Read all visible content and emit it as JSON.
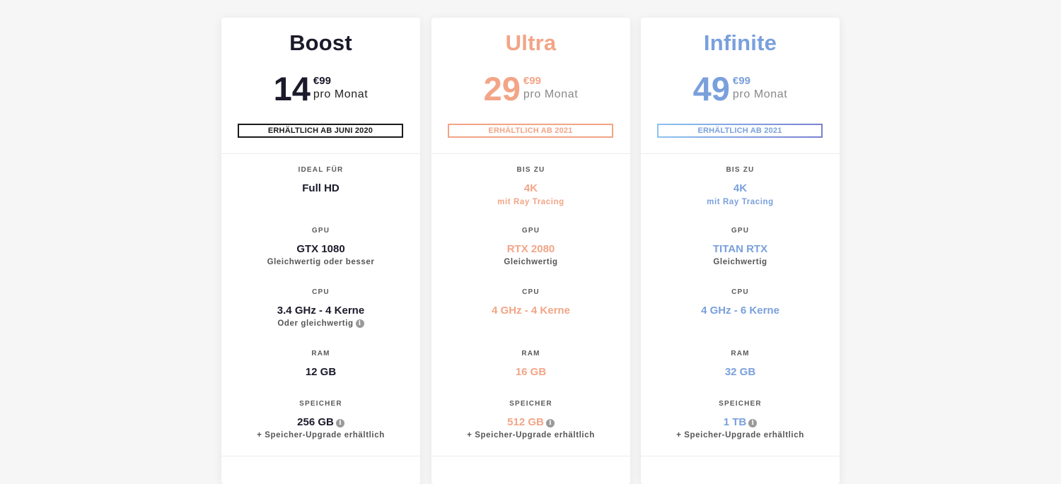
{
  "plans": [
    {
      "name": "Boost",
      "price_int": "14",
      "price_cents": "€99",
      "period": "pro Monat",
      "availability": "ERHÄLTLICH AB JUNI 2020",
      "accent": "#1a1a2a",
      "border": "#1a1a1a",
      "specs": [
        {
          "label": "IDEAL FÜR",
          "value": "Full HD",
          "sub": "",
          "info": false
        },
        {
          "label": "GPU",
          "value": "GTX 1080",
          "sub": "Gleichwertig oder besser",
          "info": false
        },
        {
          "label": "CPU",
          "value": "3.4 GHz - 4 Kerne",
          "sub": "Oder gleichwertig",
          "info": true
        },
        {
          "label": "RAM",
          "value": "12 GB",
          "sub": "",
          "info": false
        },
        {
          "label": "SPEICHER",
          "value": "256 GB",
          "sub": "+ Speicher-Upgrade erhältlich",
          "info": true
        }
      ]
    },
    {
      "name": "Ultra",
      "price_int": "29",
      "price_cents": "€99",
      "period": "pro Monat",
      "availability": "ERHÄLTLICH AB 2021",
      "accent": "#f2a587",
      "border": "#f2a587",
      "specs": [
        {
          "label": "BIS ZU",
          "value": "4K",
          "sub": "mit Ray Tracing",
          "info": false
        },
        {
          "label": "GPU",
          "value": "RTX 2080",
          "sub": "Gleichwertig",
          "info": false
        },
        {
          "label": "CPU",
          "value": "4 GHz - 4 Kerne",
          "sub": "",
          "info": false
        },
        {
          "label": "RAM",
          "value": "16 GB",
          "sub": "",
          "info": false
        },
        {
          "label": "SPEICHER",
          "value": "512 GB",
          "sub": "+ Speicher-Upgrade erhältlich",
          "info": true
        }
      ]
    },
    {
      "name": "Infinite",
      "price_int": "49",
      "price_cents": "€99",
      "period": "pro Monat",
      "availability": "ERHÄLTLICH AB 2021",
      "accent": "#7aa0dc",
      "border": "#7a9ad8",
      "specs": [
        {
          "label": "BIS ZU",
          "value": "4K",
          "sub": "mit Ray Tracing",
          "info": false
        },
        {
          "label": "GPU",
          "value": "TITAN RTX",
          "sub": "Gleichwertig",
          "info": false
        },
        {
          "label": "CPU",
          "value": "4 GHz - 6 Kerne",
          "sub": "",
          "info": false
        },
        {
          "label": "RAM",
          "value": "32 GB",
          "sub": "",
          "info": false
        },
        {
          "label": "SPEICHER",
          "value": "1 TB",
          "sub": "+ Speicher-Upgrade erhältlich",
          "info": true
        }
      ]
    }
  ],
  "icons": {
    "info": "info-icon"
  }
}
